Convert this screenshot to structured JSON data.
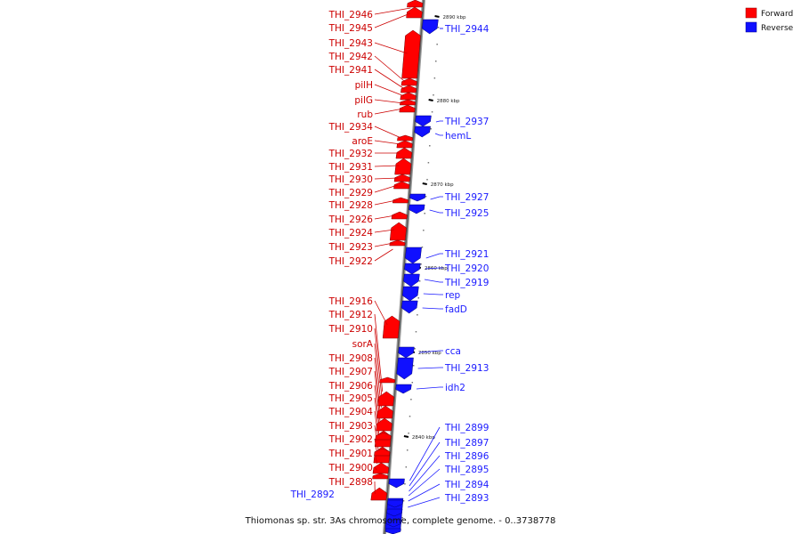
{
  "figure": {
    "title": "Thiomonas sp. str. 3As chromosome, complete genome. - 0..3738778"
  },
  "legend": [
    {
      "label": "Forward",
      "color": "#ff0000"
    },
    {
      "label": "Reverse",
      "color": "#1010ff"
    }
  ],
  "colors": {
    "forward": "#ff0000",
    "reverse": "#1010ff",
    "forward_label": "#cc0000",
    "reverse_label": "#1a1aff"
  },
  "ruler_ticks": [
    {
      "label": "2890 kbp"
    },
    {
      "label": "2880 kbp"
    },
    {
      "label": "2870 kbp"
    },
    {
      "label": "2860 kbp"
    },
    {
      "label": "2850 kbp"
    },
    {
      "label": "2840 kbp"
    }
  ],
  "forward_genes": [
    {
      "name": "THI_2946"
    },
    {
      "name": "THI_2945"
    },
    {
      "name": "THI_2943"
    },
    {
      "name": "THI_2942"
    },
    {
      "name": "THI_2941"
    },
    {
      "name": "pilH"
    },
    {
      "name": "pilG"
    },
    {
      "name": "rub"
    },
    {
      "name": "THI_2934"
    },
    {
      "name": "aroE"
    },
    {
      "name": "THI_2932"
    },
    {
      "name": "THI_2931"
    },
    {
      "name": "THI_2930"
    },
    {
      "name": "THI_2929"
    },
    {
      "name": "THI_2928"
    },
    {
      "name": "THI_2926"
    },
    {
      "name": "THI_2924"
    },
    {
      "name": "THI_2923"
    },
    {
      "name": "THI_2922"
    },
    {
      "name": "THI_2916"
    },
    {
      "name": "THI_2912"
    },
    {
      "name": "THI_2910"
    },
    {
      "name": "sorA"
    },
    {
      "name": "THI_2908"
    },
    {
      "name": "THI_2907"
    },
    {
      "name": "THI_2906"
    },
    {
      "name": "THI_2905"
    },
    {
      "name": "THI_2904"
    },
    {
      "name": "THI_2903"
    },
    {
      "name": "THI_2902"
    },
    {
      "name": "THI_2901"
    },
    {
      "name": "THI_2900"
    },
    {
      "name": "THI_2898"
    }
  ],
  "reverse_genes": [
    {
      "name": "THI_2944"
    },
    {
      "name": "THI_2937"
    },
    {
      "name": "hemL"
    },
    {
      "name": "THI_2927"
    },
    {
      "name": "THI_2925"
    },
    {
      "name": "THI_2921"
    },
    {
      "name": "THI_2920"
    },
    {
      "name": "THI_2919"
    },
    {
      "name": "rep"
    },
    {
      "name": "fadD"
    },
    {
      "name": "cca"
    },
    {
      "name": "THI_2913"
    },
    {
      "name": "idh2"
    },
    {
      "name": "THI_2899"
    },
    {
      "name": "THI_2897"
    },
    {
      "name": "THI_2896"
    },
    {
      "name": "THI_2895"
    },
    {
      "name": "THI_2894"
    },
    {
      "name": "THI_2893"
    },
    {
      "name": "THI_2892"
    }
  ]
}
